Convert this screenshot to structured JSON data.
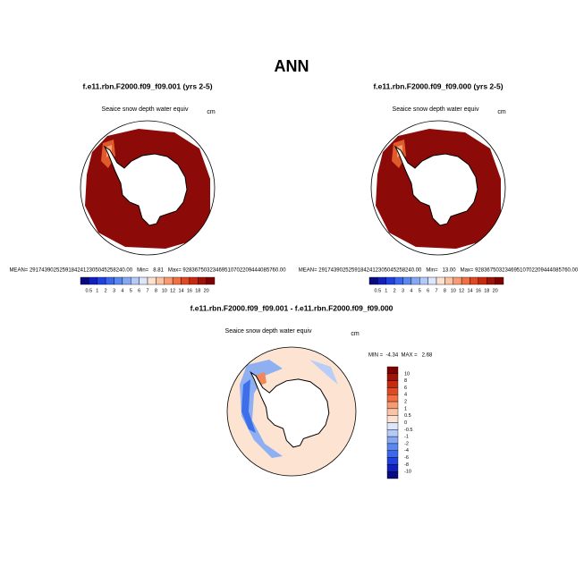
{
  "title": "ANN",
  "panels": [
    {
      "title": "f.e11.rbn.F2000.f09_f09.001 (yrs 2-5)",
      "variable": "Seaice snow depth water equiv",
      "units": "cm",
      "stats": "MEAN= 29174390252591842412305045258240.00   Min=   8.81   Max= 92836750323469510702209444085760.00",
      "colorbar_labels": [
        0.5,
        1,
        2,
        3,
        4,
        5,
        6,
        7,
        8,
        10,
        12,
        14,
        16,
        18,
        20
      ]
    },
    {
      "title": "f.e11.rbn.F2000.f09_f09.000 (yrs 2-5)",
      "variable": "Seaice snow depth water equiv",
      "units": "cm",
      "stats": "MEAN= 29174390252591842412305045258240.00   Min=   13.00   Max= 92836750323469510702209444085760.00",
      "colorbar_labels": [
        0.5,
        1,
        2,
        3,
        4,
        5,
        6,
        7,
        8,
        10,
        12,
        14,
        16,
        18,
        20
      ]
    }
  ],
  "difference": {
    "title": "f.e11.rbn.F2000.f09_f09.001 - f.e11.rbn.F2000.f09_f09.000",
    "variable": "Seaice snow depth water equiv",
    "units": "cm",
    "stats": "MIN =  -4.34  MAX =   2.68",
    "colorbar_labels": [
      10,
      8,
      6,
      4,
      2,
      1,
      0.5,
      0,
      -0.5,
      -1,
      -2,
      -4,
      -6,
      -8,
      -10
    ]
  }
}
